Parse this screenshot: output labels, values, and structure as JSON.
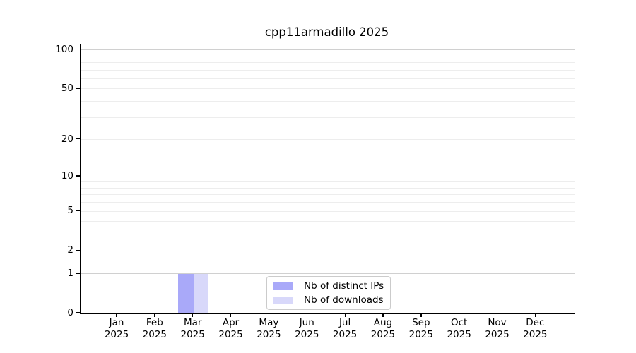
{
  "title": "cpp11armadillo 2025",
  "chart_data": {
    "type": "bar",
    "title": "cpp11armadillo 2025",
    "x_ticks": [
      {
        "month": "Jan",
        "year": "2025"
      },
      {
        "month": "Feb",
        "year": "2025"
      },
      {
        "month": "Mar",
        "year": "2025"
      },
      {
        "month": "Apr",
        "year": "2025"
      },
      {
        "month": "May",
        "year": "2025"
      },
      {
        "month": "Jun",
        "year": "2025"
      },
      {
        "month": "Jul",
        "year": "2025"
      },
      {
        "month": "Aug",
        "year": "2025"
      },
      {
        "month": "Sep",
        "year": "2025"
      },
      {
        "month": "Oct",
        "year": "2025"
      },
      {
        "month": "Nov",
        "year": "2025"
      },
      {
        "month": "Dec",
        "year": "2025"
      }
    ],
    "series": [
      {
        "name": "Nb of distinct IPs",
        "color": "#a9a9f9",
        "values": [
          0,
          0,
          1,
          0,
          0,
          0,
          0,
          0,
          0,
          0,
          0,
          0
        ]
      },
      {
        "name": "Nb of downloads",
        "color": "#d8d8fa",
        "values": [
          0,
          0,
          1,
          0,
          0,
          0,
          0,
          0,
          0,
          0,
          0,
          0
        ]
      }
    ],
    "yscale": "log1p",
    "ylim": [
      0,
      110
    ],
    "yticks": [
      0,
      1,
      2,
      5,
      10,
      20,
      50,
      100
    ],
    "major_gridlines": [
      1,
      10,
      100
    ],
    "minor_gridlines": [
      2,
      3,
      4,
      5,
      6,
      7,
      8,
      9,
      20,
      30,
      40,
      50,
      60,
      70,
      80,
      90
    ],
    "grid": true,
    "legend_position": "lower center"
  },
  "colors": {
    "background": "#ffffff",
    "spine": "#000000",
    "grid_major": "#d0d0d0",
    "grid_minor": "#ededed",
    "legend_border": "#cbcbcb"
  }
}
